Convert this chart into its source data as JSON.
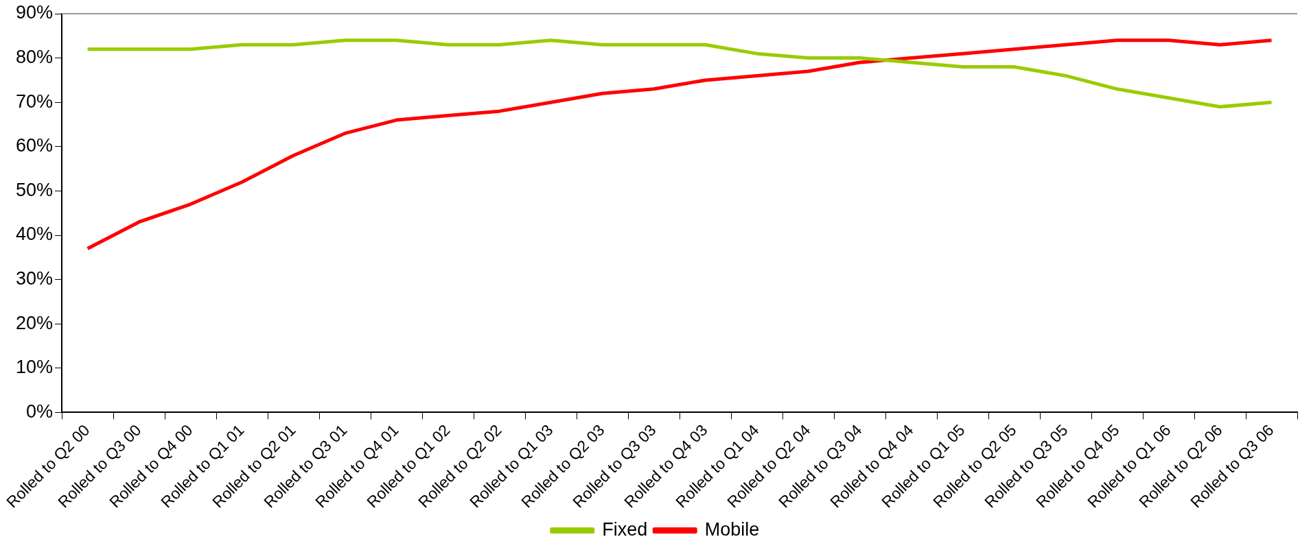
{
  "chart_data": {
    "type": "line",
    "categories": [
      "Rolled to Q2 00",
      "Rolled to Q3 00",
      "Rolled to Q4 00",
      "Rolled to Q1 01",
      "Rolled to Q2 01",
      "Rolled to Q3 01",
      "Rolled to Q4 01",
      "Rolled to Q1 02",
      "Rolled to Q2 02",
      "Rolled to Q1 03",
      "Rolled to Q2 03",
      "Rolled to Q3 03",
      "Rolled to Q4 03",
      "Rolled to Q1 04",
      "Rolled to Q2 04",
      "Rolled to Q3 04",
      "Rolled to Q4 04",
      "Rolled to Q1 05",
      "Rolled to Q2 05",
      "Rolled to Q3 05",
      "Rolled to Q4 05",
      "Rolled to Q1 06",
      "Rolled to Q2 06",
      "Rolled to Q3 06"
    ],
    "series": [
      {
        "name": "Fixed",
        "color": "#99cc00",
        "values": [
          82,
          82,
          82,
          83,
          83,
          84,
          84,
          83,
          83,
          84,
          83,
          83,
          83,
          81,
          80,
          80,
          79,
          78,
          78,
          76,
          73,
          71,
          69,
          70
        ]
      },
      {
        "name": "Mobile",
        "color": "#ff0000",
        "values": [
          37,
          43,
          47,
          52,
          58,
          63,
          66,
          67,
          68,
          70,
          72,
          73,
          75,
          76,
          77,
          79,
          80,
          81,
          82,
          83,
          84,
          84,
          83,
          84
        ]
      }
    ],
    "ylim": [
      0,
      90
    ],
    "yticks": [
      {
        "value": 0,
        "label": "0%"
      },
      {
        "value": 10,
        "label": "10%"
      },
      {
        "value": 20,
        "label": "20%"
      },
      {
        "value": 30,
        "label": "30%"
      },
      {
        "value": 40,
        "label": "40%"
      },
      {
        "value": 50,
        "label": "50%"
      },
      {
        "value": 60,
        "label": "60%"
      },
      {
        "value": 70,
        "label": "70%"
      },
      {
        "value": 80,
        "label": "80%"
      },
      {
        "value": 90,
        "label": "90%"
      }
    ],
    "grid": false,
    "legend": "bottom",
    "marker": "none",
    "line_style": "solid"
  }
}
